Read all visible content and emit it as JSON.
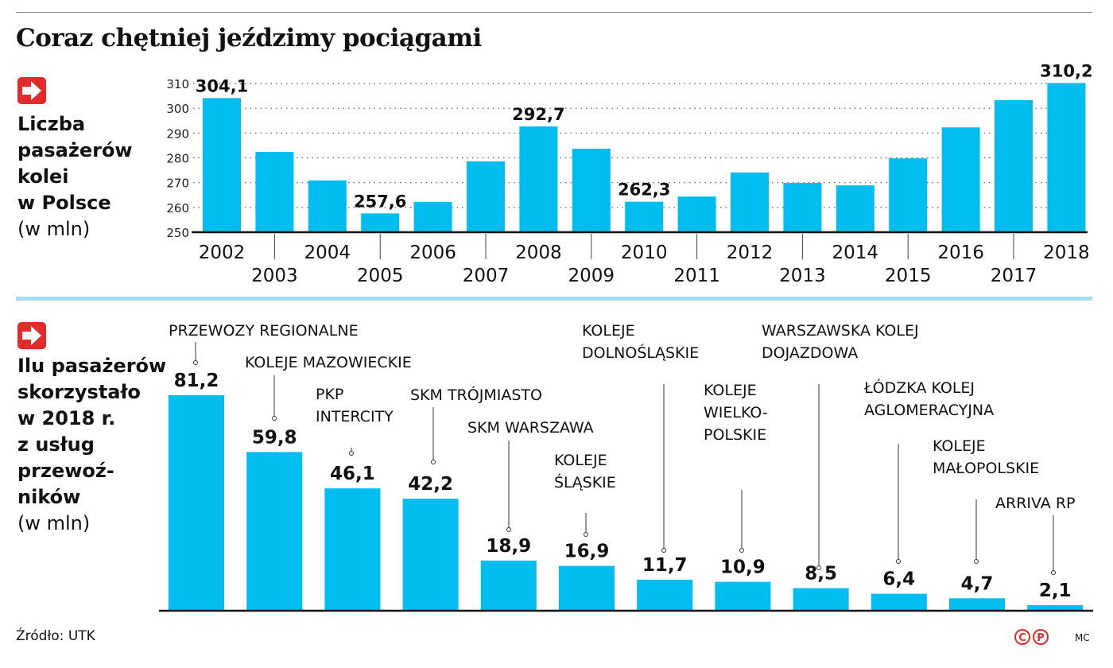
{
  "title": "Coraz chętniej jeździmy pociągami",
  "source": "Źródło: UTK",
  "credit": "MC",
  "copyright_marks": [
    "C",
    "P"
  ],
  "colors": {
    "bar": "#00bdf0",
    "accent": "#e42b2b",
    "divider": "#a8def3"
  },
  "icons": [
    "arrow-right-icon",
    "copyright-icon",
    "phonogram-icon"
  ],
  "chart_data": [
    {
      "type": "bar",
      "side_title": [
        "Liczba",
        "pasażerów",
        "kolei",
        "w Polsce"
      ],
      "unit": "(w mln)",
      "categories": [
        "2002",
        "2003",
        "2004",
        "2005",
        "2006",
        "2007",
        "2008",
        "2009",
        "2010",
        "2011",
        "2012",
        "2013",
        "2014",
        "2015",
        "2016",
        "2017",
        "2018"
      ],
      "values": [
        304.1,
        282.4,
        270.9,
        257.6,
        262.2,
        278.6,
        292.7,
        283.7,
        262.3,
        264.4,
        274.1,
        269.9,
        268.9,
        279.8,
        292.3,
        303.3,
        310.2
      ],
      "labeled_categories": [
        "2002",
        "2005",
        "2008",
        "2010",
        "2018"
      ],
      "ylim": [
        250,
        310
      ],
      "yticks": [
        250,
        260,
        270,
        280,
        290,
        300,
        310
      ],
      "grid": true
    },
    {
      "type": "bar",
      "side_title": [
        "Ilu pasażerów",
        "skorzystało",
        "w 2018 r.",
        "z usług",
        "przewoź-",
        "ników"
      ],
      "unit": "(w mln)",
      "categories": [
        [
          "PRZEWOZY REGIONALNE"
        ],
        [
          "KOLEJE MAZOWIECKIE"
        ],
        [
          "PKP",
          "INTERCITY"
        ],
        [
          "SKM TRÓJMIASTO"
        ],
        [
          "SKM WARSZAWA"
        ],
        [
          "KOLEJE",
          "ŚLĄSKIE"
        ],
        [
          "KOLEJE",
          "DOLNOŚLĄSKIE"
        ],
        [
          "KOLEJE",
          "WIELKO-",
          "POLSKIE"
        ],
        [
          "WARSZAWSKA KOLEJ",
          "DOJAZDOWA"
        ],
        [
          "ŁÓDZKA KOLEJ",
          "AGLOMERACYJNA"
        ],
        [
          "KOLEJE",
          "MAŁOPOLSKIE"
        ],
        [
          "ARRIVA RP"
        ]
      ],
      "values": [
        81.2,
        59.8,
        46.1,
        42.2,
        18.9,
        16.9,
        11.7,
        10.9,
        8.5,
        6.4,
        4.7,
        2.1
      ],
      "ylim": [
        0,
        81.2
      ]
    }
  ]
}
